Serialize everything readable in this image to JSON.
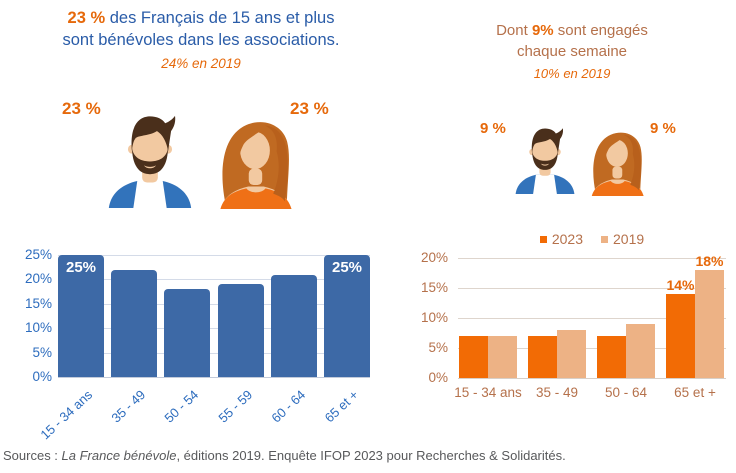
{
  "colors": {
    "orange": "#E6690B",
    "blue_title": "#2A5CA8",
    "blue_axis": "#2E6DBE",
    "bar_blue": "#3D69A6",
    "bar_orange_2023": "#F26B05",
    "bar_tan_2019": "#EDB285",
    "brown_text": "#B5714B",
    "footer_gray": "#58595B"
  },
  "left_panel": {
    "title_highlight": "23 %",
    "title_rest": " des Français de 15 ans et plus",
    "title_line2": "sont bénévoles dans les associations.",
    "subtitle": "24% en 2019",
    "male_label": "23 %",
    "female_label": "23 %"
  },
  "right_panel": {
    "title_pre": "Dont ",
    "title_highlight": "9%",
    "title_post": " sont engagés",
    "title_line2": "chaque semaine",
    "subtitle": "10% en 2019",
    "male_label": "9 %",
    "female_label": "9 %"
  },
  "footer": {
    "prefix": "Sources : ",
    "italic_title": "La France bénévole",
    "suffix": ", éditions 2019. Enquête IFOP 2023 pour Recherches & Solidarités."
  },
  "chart_data": [
    {
      "id": "volunteers_by_age",
      "type": "bar",
      "categories": [
        "15 - 34 ans",
        "35 - 49",
        "50 - 54",
        "55 - 59",
        "60 - 64",
        "65 et +"
      ],
      "values": [
        25,
        22,
        18,
        19,
        21,
        25
      ],
      "bar_labels": [
        "25%",
        "",
        "",
        "",
        "",
        "25%"
      ],
      "ylim": [
        0,
        25
      ],
      "yticks": [
        "0%",
        "5%",
        "10%",
        "15%",
        "20%",
        "25%"
      ],
      "grid": true,
      "legend_position": "none",
      "bar_color": "#3D69A6",
      "axis_color": "#2E6DBE"
    },
    {
      "id": "weekly_engaged_by_age",
      "type": "bar",
      "categories": [
        "15 - 34 ans",
        "35 - 49",
        "50 - 64",
        "65 et +"
      ],
      "series": [
        {
          "name": "2023",
          "color": "#F26B05",
          "values": [
            7,
            7,
            7,
            14
          ],
          "value_labels": [
            "",
            "",
            "",
            "14%"
          ]
        },
        {
          "name": "2019",
          "color": "#EDB285",
          "values": [
            7,
            8,
            9,
            18
          ],
          "value_labels": [
            "",
            "",
            "",
            "18%"
          ]
        }
      ],
      "ylim": [
        0,
        20
      ],
      "yticks": [
        "0%",
        "5%",
        "10%",
        "15%",
        "20%"
      ],
      "grid": true,
      "legend_position": "top",
      "axis_color": "#B5714B"
    }
  ]
}
